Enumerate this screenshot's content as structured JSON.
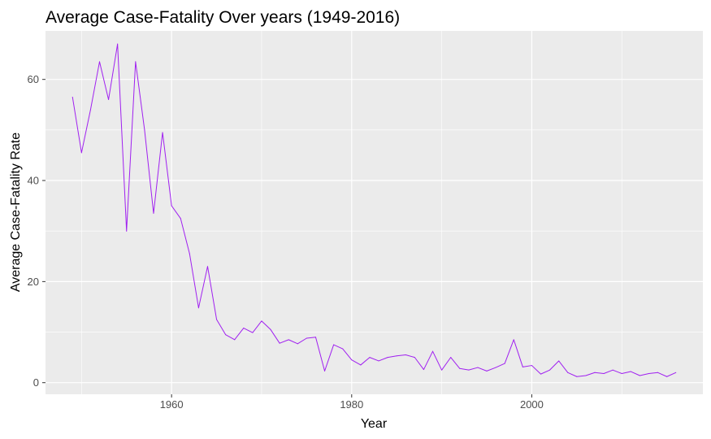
{
  "chart_data": {
    "type": "line",
    "title": "Average Case-Fatality Over years (1949-2016)",
    "xlabel": "Year",
    "ylabel": "Average Case-Fatality Rate",
    "xlim": [
      1946,
      2019
    ],
    "ylim": [
      -2.3,
      69.6
    ],
    "xticks": [
      1960,
      1980,
      2000
    ],
    "yticks": [
      0,
      20,
      40,
      60
    ],
    "grid": true,
    "panel_background": "#ebebeb",
    "grid_color": "#ffffff",
    "series": [
      {
        "color": "#a020f0",
        "x": [
          1949,
          1950,
          1951,
          1952,
          1953,
          1954,
          1955,
          1956,
          1957,
          1958,
          1959,
          1960,
          1961,
          1962,
          1963,
          1964,
          1965,
          1966,
          1967,
          1968,
          1969,
          1970,
          1971,
          1972,
          1973,
          1974,
          1975,
          1976,
          1977,
          1978,
          1979,
          1980,
          1981,
          1982,
          1983,
          1984,
          1985,
          1986,
          1987,
          1988,
          1989,
          1990,
          1991,
          1992,
          1993,
          1994,
          1995,
          1996,
          1997,
          1998,
          1999,
          2000,
          2001,
          2002,
          2003,
          2004,
          2005,
          2006,
          2007,
          2008,
          2009,
          2010,
          2011,
          2012,
          2013,
          2014,
          2015,
          2016
        ],
        "y": [
          56.5,
          45.5,
          54.0,
          63.5,
          56.0,
          67.0,
          30.0,
          63.5,
          50.0,
          33.5,
          49.5,
          35.0,
          32.5,
          25.5,
          14.8,
          23.0,
          12.5,
          9.5,
          8.5,
          10.8,
          9.9,
          12.2,
          10.5,
          7.8,
          8.5,
          7.7,
          8.8,
          9.0,
          2.3,
          7.5,
          6.7,
          4.5,
          3.5,
          5.0,
          4.3,
          5.0,
          5.3,
          5.5,
          5.0,
          2.6,
          6.2,
          2.5,
          5.0,
          2.8,
          2.5,
          3.0,
          2.3,
          3.0,
          3.8,
          8.5,
          3.1,
          3.4,
          1.7,
          2.5,
          4.3,
          2.0,
          1.2,
          1.4,
          2.0,
          1.8,
          2.5,
          1.8,
          2.2,
          1.4,
          1.8,
          2.0,
          1.2,
          2.0
        ]
      }
    ]
  }
}
